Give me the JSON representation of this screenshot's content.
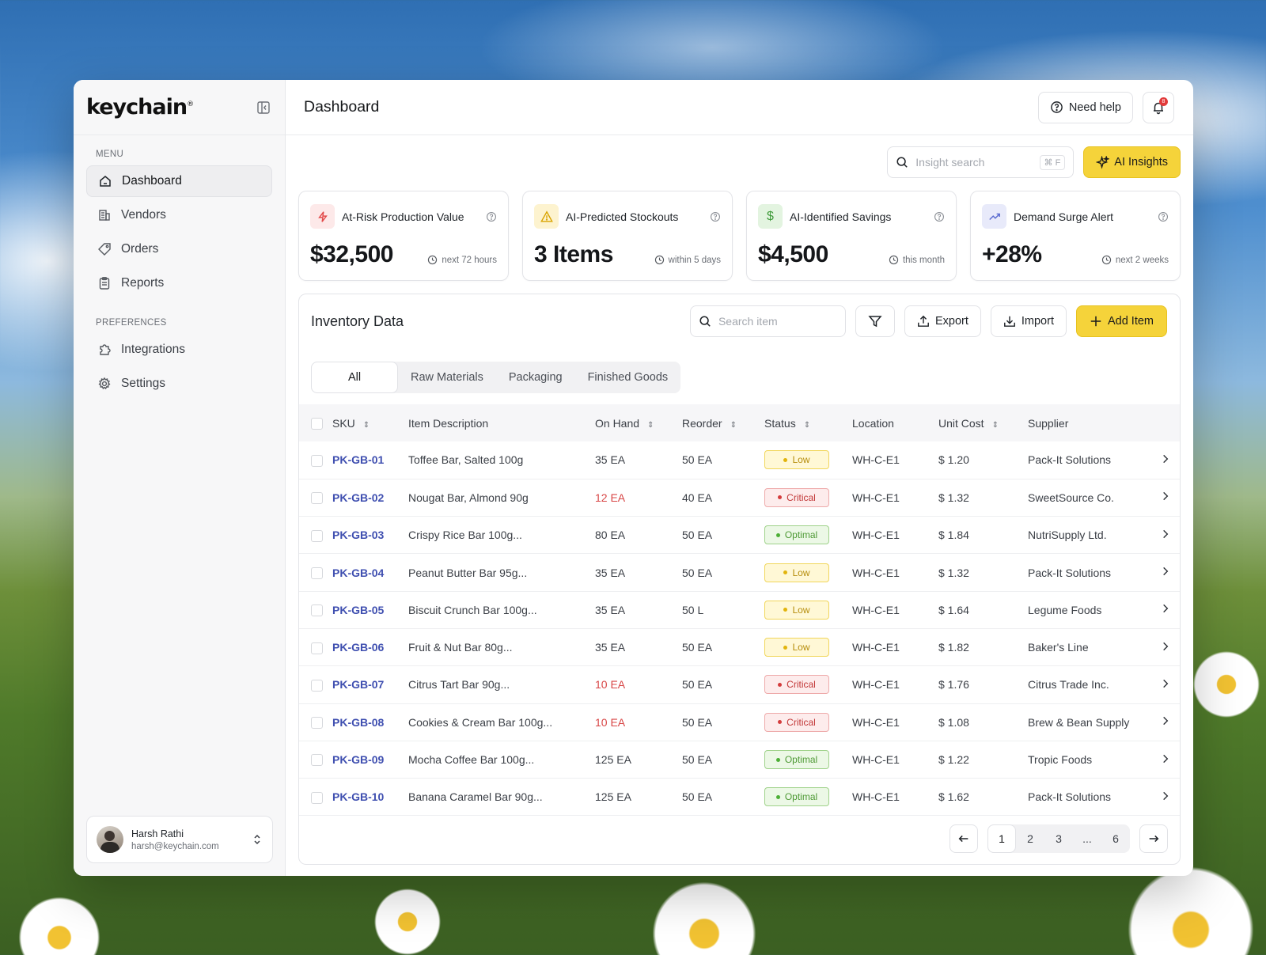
{
  "brand": {
    "name": "keychain",
    "mark": "®"
  },
  "sidebar": {
    "menu_label": "MENU",
    "menu_items": [
      {
        "label": "Dashboard",
        "icon": "home-icon",
        "active": true
      },
      {
        "label": "Vendors",
        "icon": "building-icon"
      },
      {
        "label": "Orders",
        "icon": "tag-icon"
      },
      {
        "label": "Reports",
        "icon": "clipboard-icon"
      }
    ],
    "preferences_label": "PREFERENCES",
    "pref_items": [
      {
        "label": "Integrations",
        "icon": "puzzle-icon"
      },
      {
        "label": "Settings",
        "icon": "gear-icon"
      }
    ],
    "user": {
      "name": "Harsh Rathi",
      "email": "harsh@keychain.com"
    }
  },
  "header": {
    "title": "Dashboard",
    "help_label": "Need help",
    "notification_count": "8"
  },
  "insights": {
    "search_placeholder": "Insight search",
    "shortcut": "⌘ F",
    "ai_button": "AI Insights"
  },
  "kpis": [
    {
      "title": "At-Risk Production Value",
      "value": "$32,500",
      "note": "next 72 hours",
      "icon": "lightning-icon",
      "color": "#e24a4a",
      "bg": "#fde9e9"
    },
    {
      "title": "AI-Predicted Stockouts",
      "value": "3 Items",
      "note": "within 5 days",
      "icon": "warning-icon",
      "color": "#d9a400",
      "bg": "#fdf3cf"
    },
    {
      "title": "AI-Identified Savings",
      "value": "$4,500",
      "note": "this month",
      "icon": "dollar-icon",
      "color": "#3f9a3a",
      "bg": "#e3f4e0"
    },
    {
      "title": "Demand Surge Alert",
      "value": "+28%",
      "note": "next 2 weeks",
      "icon": "trend-up-icon",
      "color": "#5a6ad0",
      "bg": "#e8eafa"
    }
  ],
  "inventory": {
    "title": "Inventory Data",
    "search_placeholder": "Search item",
    "export_label": "Export",
    "import_label": "Import",
    "add_label": "Add Item",
    "tabs": [
      "All",
      "Raw Materials",
      "Packaging",
      "Finished Goods"
    ],
    "columns": [
      "SKU",
      "Item Description",
      "On Hand",
      "Reorder",
      "Status",
      "Location",
      "Unit Cost",
      "Supplier"
    ],
    "rows": [
      {
        "sku": "PK-GB-01",
        "desc": "Toffee Bar, Salted 100g",
        "on_hand": "35 EA",
        "reorder": "50 EA",
        "status": "Low",
        "location": "WH-C-E1",
        "cost": "$ 1.20",
        "supplier": "Pack-It Solutions"
      },
      {
        "sku": "PK-GB-02",
        "desc": "Nougat Bar, Almond 90g",
        "on_hand": "12 EA",
        "reorder": "40 EA",
        "status": "Critical",
        "location": "WH-C-E1",
        "cost": "$ 1.32",
        "supplier": "SweetSource Co."
      },
      {
        "sku": "PK-GB-03",
        "desc": "Crispy Rice Bar 100g...",
        "on_hand": "80 EA",
        "reorder": "50 EA",
        "status": "Optimal",
        "location": "WH-C-E1",
        "cost": "$ 1.84",
        "supplier": "NutriSupply Ltd."
      },
      {
        "sku": "PK-GB-04",
        "desc": "Peanut Butter Bar 95g...",
        "on_hand": "35 EA",
        "reorder": "50 EA",
        "status": "Low",
        "location": "WH-C-E1",
        "cost": "$ 1.32",
        "supplier": "Pack-It Solutions"
      },
      {
        "sku": "PK-GB-05",
        "desc": "Biscuit Crunch Bar 100g...",
        "on_hand": "35 EA",
        "reorder": "50 L",
        "status": "Low",
        "location": "WH-C-E1",
        "cost": "$ 1.64",
        "supplier": "Legume Foods"
      },
      {
        "sku": "PK-GB-06",
        "desc": "Fruit & Nut Bar 80g...",
        "on_hand": "35 EA",
        "reorder": "50 EA",
        "status": "Low",
        "location": "WH-C-E1",
        "cost": "$ 1.82",
        "supplier": "Baker's Line"
      },
      {
        "sku": "PK-GB-07",
        "desc": "Citrus Tart Bar 90g...",
        "on_hand": "10 EA",
        "reorder": "50 EA",
        "status": "Critical",
        "location": "WH-C-E1",
        "cost": "$ 1.76",
        "supplier": "Citrus Trade Inc."
      },
      {
        "sku": "PK-GB-08",
        "desc": "Cookies & Cream Bar 100g...",
        "on_hand": "10 EA",
        "reorder": "50 EA",
        "status": "Critical",
        "location": "WH-C-E1",
        "cost": "$ 1.08",
        "supplier": "Brew & Bean Supply"
      },
      {
        "sku": "PK-GB-09",
        "desc": "Mocha Coffee Bar 100g...",
        "on_hand": "125 EA",
        "reorder": "50 EA",
        "status": "Optimal",
        "location": "WH-C-E1",
        "cost": "$ 1.22",
        "supplier": "Tropic Foods"
      },
      {
        "sku": "PK-GB-10",
        "desc": "Banana Caramel Bar 90g...",
        "on_hand": "125 EA",
        "reorder": "50 EA",
        "status": "Optimal",
        "location": "WH-C-E1",
        "cost": "$ 1.62",
        "supplier": "Pack-It Solutions"
      }
    ],
    "pagination": {
      "pages": [
        "1",
        "2",
        "3",
        "...",
        "6"
      ],
      "current": "1"
    }
  },
  "colors": {
    "accent": "#f5d33a",
    "sku_link": "#3f4fb0",
    "critical": "#d84646"
  }
}
